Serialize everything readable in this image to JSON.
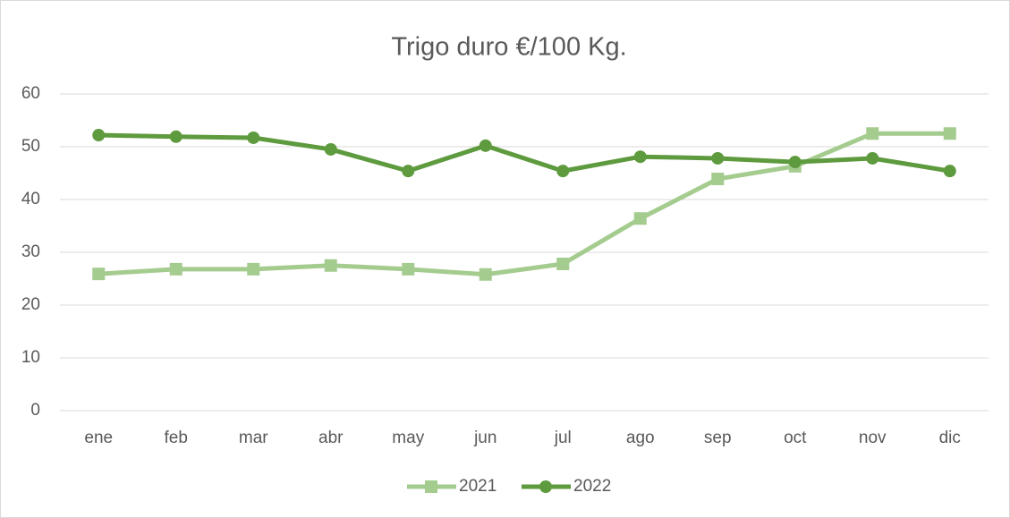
{
  "chart_data": {
    "type": "line",
    "title": "Trigo duro €/100 Kg.",
    "categories": [
      "ene",
      "feb",
      "mar",
      "abr",
      "may",
      "jun",
      "jul",
      "ago",
      "sep",
      "oct",
      "nov",
      "dic"
    ],
    "series": [
      {
        "name": "2021",
        "color": "#a5cc8f",
        "marker": "square",
        "values": [
          25.9,
          26.8,
          26.8,
          27.5,
          26.8,
          25.8,
          27.8,
          36.4,
          43.9,
          46.3,
          52.5,
          52.5
        ]
      },
      {
        "name": "2022",
        "color": "#5e9a3e",
        "marker": "circle",
        "values": [
          52.2,
          51.9,
          51.7,
          49.5,
          45.4,
          50.2,
          45.4,
          48.1,
          47.8,
          47.1,
          47.8,
          45.4
        ]
      }
    ],
    "ylim": [
      0,
      60
    ],
    "yticks": [
      0,
      10,
      20,
      30,
      40,
      50,
      60
    ],
    "grid": true,
    "legend": "bottom"
  }
}
